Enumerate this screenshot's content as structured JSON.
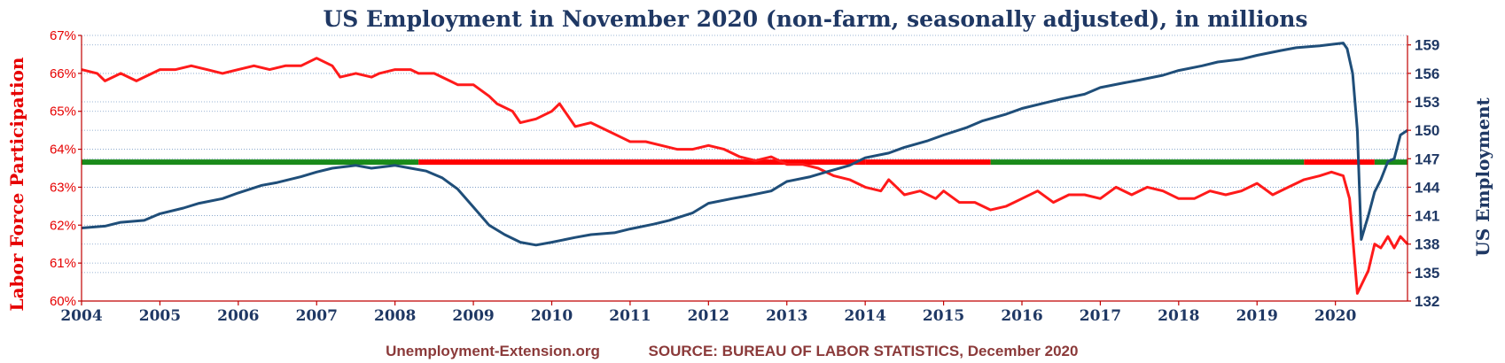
{
  "footer": {
    "site": "Unemployment-Extension.org",
    "source": "SOURCE: BUREAU OF LABOR STATISTICS, December 2020"
  },
  "colors": {
    "participation": "#ff1a1a",
    "employment": "#1f4e79",
    "average_green": "#1a8a1a",
    "average_red": "#ff0000",
    "title": "#1f3864"
  },
  "chart_data": {
    "type": "line",
    "title": "US Employment in November 2020 (non-farm, seasonally adjusted), in millions",
    "ylabel_left": "Labor Force Participation",
    "ylabel_right": "US Employment",
    "xlabel": "",
    "xlim": [
      2004.0,
      2020.92
    ],
    "ylim_left": [
      60,
      67
    ],
    "ylim_right": [
      132,
      160
    ],
    "x_ticks": [
      "2004",
      "2005",
      "2006",
      "2007",
      "2008",
      "2009",
      "2010",
      "2011",
      "2012",
      "2013",
      "2014",
      "2015",
      "2016",
      "2017",
      "2018",
      "2019",
      "2020"
    ],
    "y_ticks_left": [
      "60%",
      "61%",
      "62%",
      "63%",
      "64%",
      "65%",
      "66%",
      "67%"
    ],
    "y_ticks_right": [
      "132",
      "135",
      "138",
      "141",
      "144",
      "147",
      "150",
      "153",
      "156",
      "159"
    ],
    "grid": true,
    "average_line": {
      "axis": "left",
      "value": 63.66
    },
    "series": [
      {
        "name": "Labor Force Participation",
        "axis": "left",
        "points": [
          [
            2004.0,
            66.1
          ],
          [
            2004.2,
            66.0
          ],
          [
            2004.3,
            65.8
          ],
          [
            2004.5,
            66.0
          ],
          [
            2004.7,
            65.8
          ],
          [
            2004.8,
            65.9
          ],
          [
            2005.0,
            66.1
          ],
          [
            2005.2,
            66.1
          ],
          [
            2005.4,
            66.2
          ],
          [
            2005.6,
            66.1
          ],
          [
            2005.8,
            66.0
          ],
          [
            2006.0,
            66.1
          ],
          [
            2006.2,
            66.2
          ],
          [
            2006.4,
            66.1
          ],
          [
            2006.6,
            66.2
          ],
          [
            2006.8,
            66.2
          ],
          [
            2007.0,
            66.4
          ],
          [
            2007.2,
            66.2
          ],
          [
            2007.3,
            65.9
          ],
          [
            2007.5,
            66.0
          ],
          [
            2007.7,
            65.9
          ],
          [
            2007.8,
            66.0
          ],
          [
            2008.0,
            66.1
          ],
          [
            2008.2,
            66.1
          ],
          [
            2008.3,
            66.0
          ],
          [
            2008.5,
            66.0
          ],
          [
            2008.7,
            65.8
          ],
          [
            2008.8,
            65.7
          ],
          [
            2009.0,
            65.7
          ],
          [
            2009.2,
            65.4
          ],
          [
            2009.3,
            65.2
          ],
          [
            2009.5,
            65.0
          ],
          [
            2009.6,
            64.7
          ],
          [
            2009.8,
            64.8
          ],
          [
            2010.0,
            65.0
          ],
          [
            2010.1,
            65.2
          ],
          [
            2010.3,
            64.6
          ],
          [
            2010.5,
            64.7
          ],
          [
            2010.7,
            64.5
          ],
          [
            2010.9,
            64.3
          ],
          [
            2011.0,
            64.2
          ],
          [
            2011.2,
            64.2
          ],
          [
            2011.4,
            64.1
          ],
          [
            2011.6,
            64.0
          ],
          [
            2011.8,
            64.0
          ],
          [
            2012.0,
            64.1
          ],
          [
            2012.2,
            64.0
          ],
          [
            2012.4,
            63.8
          ],
          [
            2012.6,
            63.7
          ],
          [
            2012.8,
            63.8
          ],
          [
            2013.0,
            63.6
          ],
          [
            2013.2,
            63.6
          ],
          [
            2013.4,
            63.5
          ],
          [
            2013.6,
            63.3
          ],
          [
            2013.8,
            63.2
          ],
          [
            2014.0,
            63.0
          ],
          [
            2014.2,
            62.9
          ],
          [
            2014.3,
            63.2
          ],
          [
            2014.5,
            62.8
          ],
          [
            2014.7,
            62.9
          ],
          [
            2014.9,
            62.7
          ],
          [
            2015.0,
            62.9
          ],
          [
            2015.2,
            62.6
          ],
          [
            2015.4,
            62.6
          ],
          [
            2015.6,
            62.4
          ],
          [
            2015.8,
            62.5
          ],
          [
            2016.0,
            62.7
          ],
          [
            2016.2,
            62.9
          ],
          [
            2016.4,
            62.6
          ],
          [
            2016.6,
            62.8
          ],
          [
            2016.8,
            62.8
          ],
          [
            2017.0,
            62.7
          ],
          [
            2017.2,
            63.0
          ],
          [
            2017.4,
            62.8
          ],
          [
            2017.6,
            63.0
          ],
          [
            2017.8,
            62.9
          ],
          [
            2018.0,
            62.7
          ],
          [
            2018.2,
            62.7
          ],
          [
            2018.4,
            62.9
          ],
          [
            2018.6,
            62.8
          ],
          [
            2018.8,
            62.9
          ],
          [
            2019.0,
            63.1
          ],
          [
            2019.2,
            62.8
          ],
          [
            2019.4,
            63.0
          ],
          [
            2019.6,
            63.2
          ],
          [
            2019.8,
            63.3
          ],
          [
            2019.95,
            63.4
          ],
          [
            2020.1,
            63.3
          ],
          [
            2020.18,
            62.7
          ],
          [
            2020.28,
            60.2
          ],
          [
            2020.42,
            60.8
          ],
          [
            2020.5,
            61.5
          ],
          [
            2020.58,
            61.4
          ],
          [
            2020.67,
            61.7
          ],
          [
            2020.75,
            61.4
          ],
          [
            2020.83,
            61.7
          ],
          [
            2020.92,
            61.5
          ]
        ]
      },
      {
        "name": "US Employment",
        "axis": "right",
        "points": [
          [
            2004.0,
            139.7
          ],
          [
            2004.3,
            139.9
          ],
          [
            2004.5,
            140.3
          ],
          [
            2004.8,
            140.5
          ],
          [
            2005.0,
            141.2
          ],
          [
            2005.3,
            141.8
          ],
          [
            2005.5,
            142.3
          ],
          [
            2005.8,
            142.8
          ],
          [
            2006.0,
            143.4
          ],
          [
            2006.3,
            144.2
          ],
          [
            2006.5,
            144.5
          ],
          [
            2006.8,
            145.1
          ],
          [
            2007.0,
            145.6
          ],
          [
            2007.2,
            146.0
          ],
          [
            2007.4,
            146.2
          ],
          [
            2007.5,
            146.3
          ],
          [
            2007.7,
            146.0
          ],
          [
            2007.9,
            146.2
          ],
          [
            2008.0,
            146.3
          ],
          [
            2008.2,
            146.0
          ],
          [
            2008.4,
            145.7
          ],
          [
            2008.6,
            145.0
          ],
          [
            2008.8,
            143.8
          ],
          [
            2009.0,
            141.9
          ],
          [
            2009.2,
            140.0
          ],
          [
            2009.4,
            139.0
          ],
          [
            2009.6,
            138.2
          ],
          [
            2009.8,
            137.9
          ],
          [
            2010.0,
            138.2
          ],
          [
            2010.3,
            138.7
          ],
          [
            2010.5,
            139.0
          ],
          [
            2010.8,
            139.2
          ],
          [
            2011.0,
            139.6
          ],
          [
            2011.3,
            140.1
          ],
          [
            2011.5,
            140.5
          ],
          [
            2011.8,
            141.3
          ],
          [
            2012.0,
            142.3
          ],
          [
            2012.3,
            142.8
          ],
          [
            2012.5,
            143.1
          ],
          [
            2012.8,
            143.6
          ],
          [
            2013.0,
            144.6
          ],
          [
            2013.3,
            145.1
          ],
          [
            2013.5,
            145.6
          ],
          [
            2013.8,
            146.3
          ],
          [
            2014.0,
            147.1
          ],
          [
            2014.3,
            147.6
          ],
          [
            2014.5,
            148.2
          ],
          [
            2014.8,
            148.9
          ],
          [
            2015.0,
            149.5
          ],
          [
            2015.3,
            150.3
          ],
          [
            2015.5,
            151.0
          ],
          [
            2015.8,
            151.7
          ],
          [
            2016.0,
            152.3
          ],
          [
            2016.3,
            152.9
          ],
          [
            2016.5,
            153.3
          ],
          [
            2016.8,
            153.8
          ],
          [
            2017.0,
            154.5
          ],
          [
            2017.3,
            155.0
          ],
          [
            2017.5,
            155.3
          ],
          [
            2017.8,
            155.8
          ],
          [
            2018.0,
            156.3
          ],
          [
            2018.3,
            156.8
          ],
          [
            2018.5,
            157.2
          ],
          [
            2018.8,
            157.5
          ],
          [
            2019.0,
            157.9
          ],
          [
            2019.3,
            158.4
          ],
          [
            2019.5,
            158.7
          ],
          [
            2019.8,
            158.9
          ],
          [
            2020.0,
            159.1
          ],
          [
            2020.1,
            159.2
          ],
          [
            2020.15,
            158.6
          ],
          [
            2020.22,
            156.0
          ],
          [
            2020.28,
            150.0
          ],
          [
            2020.33,
            138.5
          ],
          [
            2020.42,
            141.0
          ],
          [
            2020.5,
            143.5
          ],
          [
            2020.58,
            144.8
          ],
          [
            2020.67,
            146.7
          ],
          [
            2020.75,
            147.0
          ],
          [
            2020.83,
            149.5
          ],
          [
            2020.92,
            150.0
          ]
        ]
      }
    ]
  }
}
